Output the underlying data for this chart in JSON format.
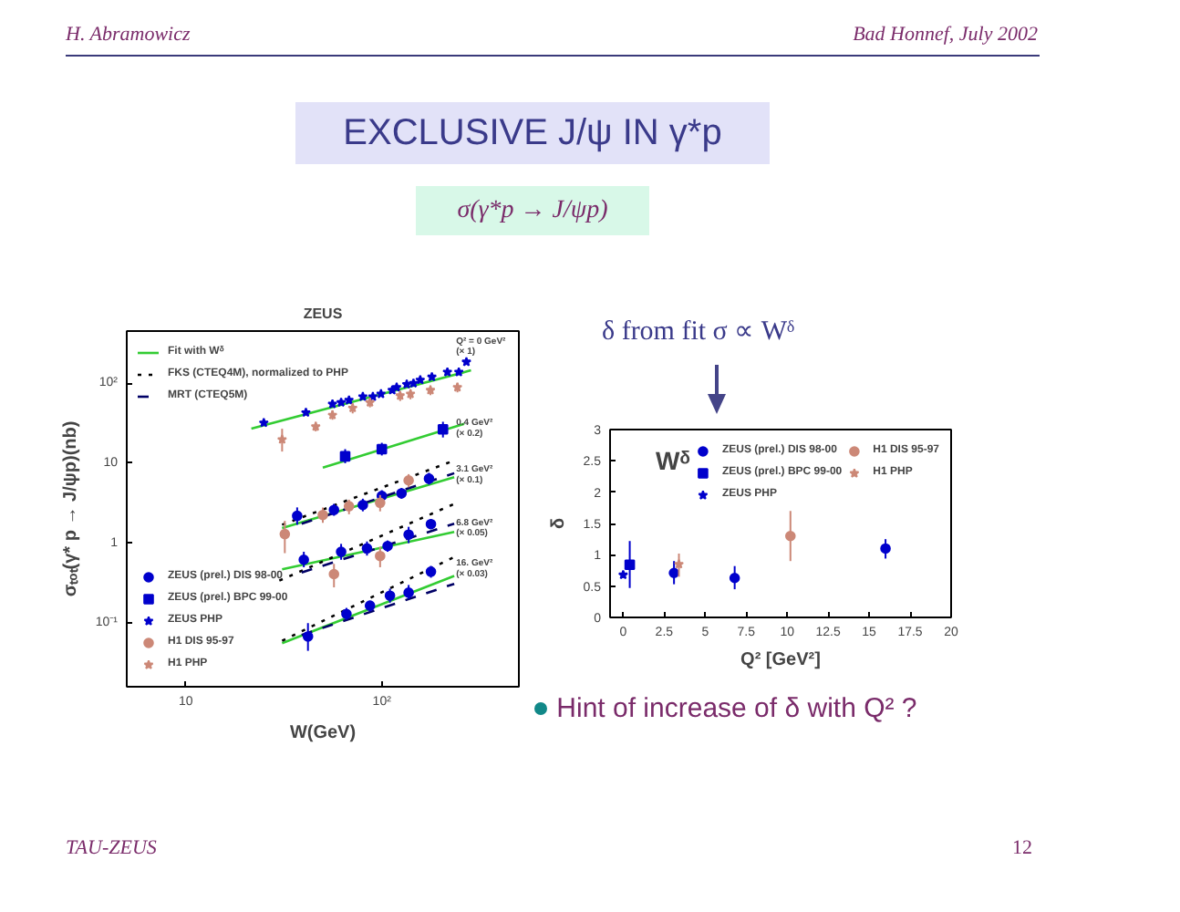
{
  "chart_data": [
    {
      "type": "scatter",
      "title": "ZEUS",
      "xlabel": "W(GeV)",
      "ylabel": "σₜₒₜ(γ* p → J/ψp)(nb)",
      "log": "xy",
      "grid": false,
      "legend": "top left",
      "xlim": [
        5,
        500
      ],
      "ylim": [
        0.016,
        450
      ],
      "xticks": [
        10,
        {
          "value": 100,
          "label": "10²"
        }
      ],
      "yticks": [
        {
          "value": 0.1,
          "label": "10⁻¹"
        },
        1,
        10,
        {
          "value": 100,
          "label": "10²"
        }
      ],
      "annotations": [
        "H. Abramowicz",
        "Bad Honnef, July 2002",
        "EXCLUSIVE J/ψ IN γ*p",
        "σ(γ*p → J/ψp)",
        "TAU-ZEUS",
        "12",
        "Q² = 0 GeV²",
        "(× 1)",
        "0.4 GeV²",
        "(× 0.2)",
        "3.1 GeV²",
        "(× 0.1)",
        "6.8 GeV²",
        "(× 0.05)",
        "16. GeV²",
        "(× 0.03)"
      ],
      "series": [
        {
          "type": "line",
          "name": "Fit with Wᵟ",
          "color": "#33cc33",
          "line_style": "solid",
          "x": [
            21.6,
            285
          ],
          "values": [
            27,
            145
          ]
        },
        {
          "type": "line",
          "color": "#33cc33",
          "line_style": "solid",
          "x": [
            50,
            263
          ],
          "values": [
            8.8,
            31
          ]
        },
        {
          "type": "line",
          "color": "#33cc33",
          "line_style": "solid",
          "x": [
            31,
            234
          ],
          "values": [
            1.55,
            6.7
          ]
        },
        {
          "type": "line",
          "color": "#33cc33",
          "line_style": "solid",
          "x": [
            31,
            234
          ],
          "values": [
            0.47,
            1.38
          ]
        },
        {
          "type": "line",
          "color": "#33cc33",
          "line_style": "solid",
          "x": [
            31,
            234
          ],
          "values": [
            0.056,
            0.39
          ]
        },
        {
          "type": "line",
          "name": "FKS (CTEQ4M), normalized to PHP",
          "color": "#000000",
          "line_style": "dotted",
          "x": [
            31,
            234
          ],
          "values": [
            1.7,
            10.8
          ]
        },
        {
          "type": "line",
          "color": "#000000",
          "line_style": "dotted",
          "x": [
            30,
            234
          ],
          "values": [
            0.34,
            3.1
          ]
        },
        {
          "type": "line",
          "color": "#000000",
          "line_style": "dotted",
          "x": [
            31,
            234
          ],
          "values": [
            0.06,
            0.67
          ]
        },
        {
          "type": "line",
          "name": "MRT (CTEQ5M)",
          "color": "#000066",
          "line_style": "dashed",
          "x": [
            39,
            234
          ],
          "values": [
            1.75,
            7.5
          ]
        },
        {
          "type": "line",
          "color": "#000066",
          "line_style": "dashed",
          "x": [
            39,
            234
          ],
          "values": [
            0.43,
            1.75
          ]
        },
        {
          "type": "line",
          "color": "#000066",
          "line_style": "dashed",
          "x": [
            39,
            234
          ],
          "values": [
            0.071,
            0.31
          ]
        },
        {
          "type": "scatter",
          "name": "ZEUS (prel.) DIS 98-00",
          "color": "#0000cc",
          "marker": "circle",
          "x": [
            37,
            57,
            80,
            100,
            126,
            174,
            40,
            62,
            84,
            107,
            137,
            178,
            42,
            66,
            87,
            110,
            137,
            178
          ],
          "values": [
            2.2,
            2.6,
            3.0,
            3.9,
            4.2,
            6.4,
            0.62,
            0.78,
            0.86,
            0.92,
            1.28,
            1.73,
            0.068,
            0.13,
            0.165,
            0.22,
            0.24,
            0.44
          ],
          "errors": [
            [
              1.7,
              2.8
            ],
            [
              2.2,
              3.1
            ],
            [
              2.5,
              3.6
            ],
            [
              3.3,
              4.6
            ],
            [
              3.6,
              4.9
            ],
            [
              5.4,
              7.6
            ],
            [
              0.5,
              0.78
            ],
            [
              0.62,
              0.98
            ],
            [
              0.7,
              1.05
            ],
            [
              0.78,
              1.08
            ],
            [
              1.0,
              1.6
            ],
            [
              1.5,
              2.0
            ],
            [
              0.045,
              0.1
            ],
            [
              0.11,
              0.155
            ],
            [
              0.14,
              0.19
            ],
            [
              0.18,
              0.27
            ],
            [
              0.2,
              0.3
            ],
            [
              0.37,
              0.52
            ]
          ]
        },
        {
          "type": "scatter",
          "name": "ZEUS (prel.) BPC 99-00",
          "color": "#0000cc",
          "marker": "square",
          "x": [
            65,
            100,
            205
          ],
          "values": [
            12.2,
            15,
            26.5
          ],
          "errors": [
            [
              10,
              15
            ],
            [
              12.5,
              18
            ],
            [
              21,
              33
            ]
          ]
        },
        {
          "type": "scatter",
          "name": "ZEUS PHP",
          "color": "#0000cc",
          "marker": "star",
          "x": [
            25,
            41,
            56,
            62,
            68,
            80,
            90,
            99,
            113,
            119,
            134,
            145,
            157,
            180,
            216,
            247,
            270
          ],
          "values": [
            32,
            43,
            55,
            57.6,
            61.5,
            68,
            68,
            73.5,
            82,
            89,
            97,
            100,
            110,
            120,
            138,
            138,
            185
          ]
        },
        {
          "type": "scatter",
          "name": "H1 DIS 95-97",
          "color": "#cc8877",
          "marker": "circle",
          "x": [
            32,
            50,
            68,
            98,
            137,
            57,
            98
          ],
          "values": [
            1.3,
            2.25,
            2.9,
            3.2,
            6.1,
            0.41,
            0.69
          ],
          "errors": [
            [
              0.75,
              1.9
            ],
            [
              1.8,
              2.8
            ],
            [
              2.3,
              3.5
            ],
            [
              2.5,
              4.0
            ],
            [
              5.0,
              7.3
            ],
            [
              0.28,
              0.55
            ],
            [
              0.5,
              0.9
            ]
          ]
        },
        {
          "type": "scatter",
          "name": "H1 PHP",
          "color": "#cc8877",
          "marker": "star",
          "x": [
            31,
            46,
            56,
            71,
            87,
            124,
            140,
            177,
            243
          ],
          "values": [
            19.8,
            28.7,
            40,
            49,
            57.6,
            70,
            73.5,
            82,
            89
          ],
          "errors": [
            [
              14,
              27
            ],
            [
              25,
              33
            ],
            [
              35,
              46
            ],
            [
              42,
              56
            ],
            [
              50,
              66
            ],
            [
              60,
              80
            ],
            [
              63,
              84
            ],
            [
              71,
              94
            ],
            [
              77,
              101
            ]
          ]
        }
      ]
    },
    {
      "type": "scatter",
      "xlabel": "Q² [GeV²]",
      "ylabel": "δ",
      "grid": false,
      "legend": "top right",
      "xlim": [
        -0.8,
        20
      ],
      "ylim": [
        0,
        3
      ],
      "xticks": [
        0,
        2.5,
        5,
        7.5,
        10,
        12.5,
        15,
        17.5,
        20
      ],
      "yticks": [
        0,
        0.5,
        1,
        1.5,
        2,
        2.5,
        3
      ],
      "annotations": [
        "δ from fit σ ∝ Wᵟ",
        "Wᵟ",
        "Hint of increase of δ with Q² ?"
      ],
      "series": [
        {
          "name": "ZEUS (prel.) DIS 98-00",
          "color": "#0000cc",
          "marker": "circle",
          "x": [
            3.1,
            6.8,
            16
          ],
          "values": [
            0.71,
            0.63,
            1.1
          ],
          "errors": [
            [
              0.53,
              0.9
            ],
            [
              0.45,
              0.82
            ],
            [
              0.94,
              1.25
            ]
          ]
        },
        {
          "name": "ZEUS (prel.) BPC 99-00",
          "color": "#0000cc",
          "marker": "square",
          "x": [
            0.4
          ],
          "values": [
            0.84
          ],
          "errors": [
            [
              0.47,
              1.22
            ]
          ]
        },
        {
          "name": "ZEUS PHP",
          "color": "#0000cc",
          "marker": "star",
          "x": [
            0
          ],
          "values": [
            0.68
          ],
          "errors": [
            [
              0.63,
              0.74
            ]
          ]
        },
        {
          "name": "H1 DIS 95-97",
          "color": "#cc8877",
          "marker": "circle",
          "x": [
            10.2
          ],
          "values": [
            1.3
          ],
          "errors": [
            [
              0.9,
              1.7
            ]
          ]
        },
        {
          "name": "H1 PHP",
          "color": "#cc8877",
          "marker": "star",
          "x": [
            3.4
          ],
          "values": [
            0.85
          ],
          "errors": [
            [
              0.65,
              1.02
            ]
          ]
        }
      ]
    }
  ]
}
